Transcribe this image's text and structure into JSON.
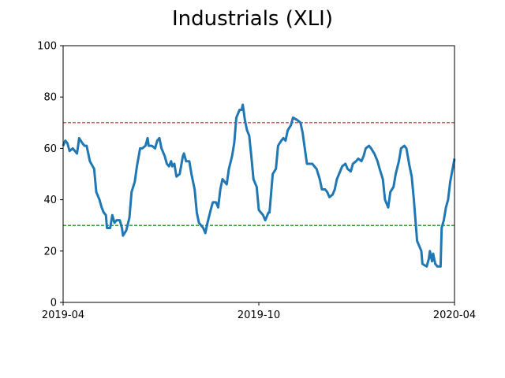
{
  "chart_data": {
    "type": "line",
    "title": "Industrials (XLI)",
    "xlabel": "",
    "ylabel": "",
    "xlim": [
      "2019-04-01",
      "2020-04-01"
    ],
    "ylim": [
      0,
      100
    ],
    "x_ticks": [
      {
        "date": "2019-04-01",
        "label": "2019-04"
      },
      {
        "date": "2019-10-01",
        "label": "2019-10"
      },
      {
        "date": "2020-04-01",
        "label": "2020-04"
      }
    ],
    "y_ticks": [
      0,
      20,
      40,
      60,
      80,
      100
    ],
    "grid": false,
    "legend": "none",
    "reference_lines": [
      {
        "y": 70,
        "color": "#d62728",
        "style": "dashed"
      },
      {
        "y": 30,
        "color": "#008000",
        "style": "dashed"
      }
    ],
    "series": [
      {
        "color": "#1f77b4",
        "points": [
          [
            "2019-04-01",
            61
          ],
          [
            "2019-04-03",
            63
          ],
          [
            "2019-04-05",
            62
          ],
          [
            "2019-04-07",
            59
          ],
          [
            "2019-04-10",
            60
          ],
          [
            "2019-04-14",
            58
          ],
          [
            "2019-04-16",
            64
          ],
          [
            "2019-04-19",
            62
          ],
          [
            "2019-04-21",
            61
          ],
          [
            "2019-04-23",
            61
          ],
          [
            "2019-04-26",
            55
          ],
          [
            "2019-04-30",
            52
          ],
          [
            "2019-05-02",
            43
          ],
          [
            "2019-05-05",
            40
          ],
          [
            "2019-05-07",
            37
          ],
          [
            "2019-05-09",
            35
          ],
          [
            "2019-05-11",
            34
          ],
          [
            "2019-05-12",
            29
          ],
          [
            "2019-05-15",
            29
          ],
          [
            "2019-05-17",
            34
          ],
          [
            "2019-05-19",
            31
          ],
          [
            "2019-05-21",
            32
          ],
          [
            "2019-05-24",
            32
          ],
          [
            "2019-05-26",
            29
          ],
          [
            "2019-05-27",
            26
          ],
          [
            "2019-05-30",
            28
          ],
          [
            "2019-06-02",
            33
          ],
          [
            "2019-06-04",
            43
          ],
          [
            "2019-06-07",
            47
          ],
          [
            "2019-06-09",
            53
          ],
          [
            "2019-06-12",
            60
          ],
          [
            "2019-06-14",
            60
          ],
          [
            "2019-06-17",
            61
          ],
          [
            "2019-06-19",
            64
          ],
          [
            "2019-06-20",
            61
          ],
          [
            "2019-06-23",
            61
          ],
          [
            "2019-06-26",
            60
          ],
          [
            "2019-06-28",
            63
          ],
          [
            "2019-06-30",
            64
          ],
          [
            "2019-07-02",
            60
          ],
          [
            "2019-07-05",
            57
          ],
          [
            "2019-07-07",
            54
          ],
          [
            "2019-07-09",
            53
          ],
          [
            "2019-07-11",
            55
          ],
          [
            "2019-07-12",
            53
          ],
          [
            "2019-07-14",
            54
          ],
          [
            "2019-07-16",
            49
          ],
          [
            "2019-07-19",
            50
          ],
          [
            "2019-07-22",
            57
          ],
          [
            "2019-07-23",
            58
          ],
          [
            "2019-07-25",
            55
          ],
          [
            "2019-07-28",
            55
          ],
          [
            "2019-07-30",
            50
          ],
          [
            "2019-08-02",
            44
          ],
          [
            "2019-08-04",
            35
          ],
          [
            "2019-08-06",
            31
          ],
          [
            "2019-08-08",
            30
          ],
          [
            "2019-08-10",
            29
          ],
          [
            "2019-08-12",
            27
          ],
          [
            "2019-08-14",
            31
          ],
          [
            "2019-08-17",
            36
          ],
          [
            "2019-08-19",
            39
          ],
          [
            "2019-08-22",
            39
          ],
          [
            "2019-08-24",
            37
          ],
          [
            "2019-08-26",
            44
          ],
          [
            "2019-08-28",
            48
          ],
          [
            "2019-09-01",
            46
          ],
          [
            "2019-09-03",
            52
          ],
          [
            "2019-09-06",
            57
          ],
          [
            "2019-09-08",
            62
          ],
          [
            "2019-09-10",
            72
          ],
          [
            "2019-09-13",
            75
          ],
          [
            "2019-09-15",
            75
          ],
          [
            "2019-09-16",
            77
          ],
          [
            "2019-09-18",
            71
          ],
          [
            "2019-09-20",
            67
          ],
          [
            "2019-09-22",
            65
          ],
          [
            "2019-09-24",
            57
          ],
          [
            "2019-09-26",
            48
          ],
          [
            "2019-09-29",
            45
          ],
          [
            "2019-10-01",
            36
          ],
          [
            "2019-10-03",
            35
          ],
          [
            "2019-10-05",
            34
          ],
          [
            "2019-10-07",
            32
          ],
          [
            "2019-10-10",
            35
          ],
          [
            "2019-10-11",
            35
          ],
          [
            "2019-10-14",
            50
          ],
          [
            "2019-10-17",
            52
          ],
          [
            "2019-10-19",
            61
          ],
          [
            "2019-10-22",
            63
          ],
          [
            "2019-10-24",
            64
          ],
          [
            "2019-10-26",
            63
          ],
          [
            "2019-10-28",
            67
          ],
          [
            "2019-10-31",
            69
          ],
          [
            "2019-11-02",
            72
          ],
          [
            "2019-11-06",
            71
          ],
          [
            "2019-11-09",
            70
          ],
          [
            "2019-11-11",
            66
          ],
          [
            "2019-11-13",
            60
          ],
          [
            "2019-11-15",
            54
          ],
          [
            "2019-11-20",
            54
          ],
          [
            "2019-11-24",
            52
          ],
          [
            "2019-11-27",
            48
          ],
          [
            "2019-11-29",
            44
          ],
          [
            "2019-12-02",
            44
          ],
          [
            "2019-12-04",
            43
          ],
          [
            "2019-12-06",
            41
          ],
          [
            "2019-12-09",
            42
          ],
          [
            "2019-12-11",
            44
          ],
          [
            "2019-12-13",
            48
          ],
          [
            "2019-12-16",
            51
          ],
          [
            "2019-12-18",
            53
          ],
          [
            "2019-12-21",
            54
          ],
          [
            "2019-12-23",
            52
          ],
          [
            "2019-12-26",
            51
          ],
          [
            "2019-12-28",
            54
          ],
          [
            "2019-12-31",
            55
          ],
          [
            "2020-01-02",
            56
          ],
          [
            "2020-01-05",
            55
          ],
          [
            "2020-01-07",
            57
          ],
          [
            "2020-01-09",
            60
          ],
          [
            "2020-01-12",
            61
          ],
          [
            "2020-01-14",
            60
          ],
          [
            "2020-01-17",
            58
          ],
          [
            "2020-01-20",
            55
          ],
          [
            "2020-01-22",
            52
          ],
          [
            "2020-01-25",
            48
          ],
          [
            "2020-01-27",
            40
          ],
          [
            "2020-01-30",
            37
          ],
          [
            "2020-02-01",
            43
          ],
          [
            "2020-02-04",
            45
          ],
          [
            "2020-02-06",
            50
          ],
          [
            "2020-02-09",
            55
          ],
          [
            "2020-02-11",
            60
          ],
          [
            "2020-02-14",
            61
          ],
          [
            "2020-02-16",
            60
          ],
          [
            "2020-02-19",
            53
          ],
          [
            "2020-02-21",
            49
          ],
          [
            "2020-02-23",
            40
          ],
          [
            "2020-02-26",
            24
          ],
          [
            "2020-02-28",
            22
          ],
          [
            "2020-03-01",
            20
          ],
          [
            "2020-03-02",
            15
          ],
          [
            "2020-03-06",
            14
          ],
          [
            "2020-03-08",
            17
          ],
          [
            "2020-03-09",
            20
          ],
          [
            "2020-03-11",
            16
          ],
          [
            "2020-03-12",
            19
          ],
          [
            "2020-03-14",
            15
          ],
          [
            "2020-03-16",
            14
          ],
          [
            "2020-03-19",
            14
          ],
          [
            "2020-03-20",
            29
          ],
          [
            "2020-03-22",
            32
          ],
          [
            "2020-03-24",
            37
          ],
          [
            "2020-03-26",
            40
          ],
          [
            "2020-03-28",
            47
          ],
          [
            "2020-04-01",
            56
          ]
        ]
      }
    ]
  }
}
